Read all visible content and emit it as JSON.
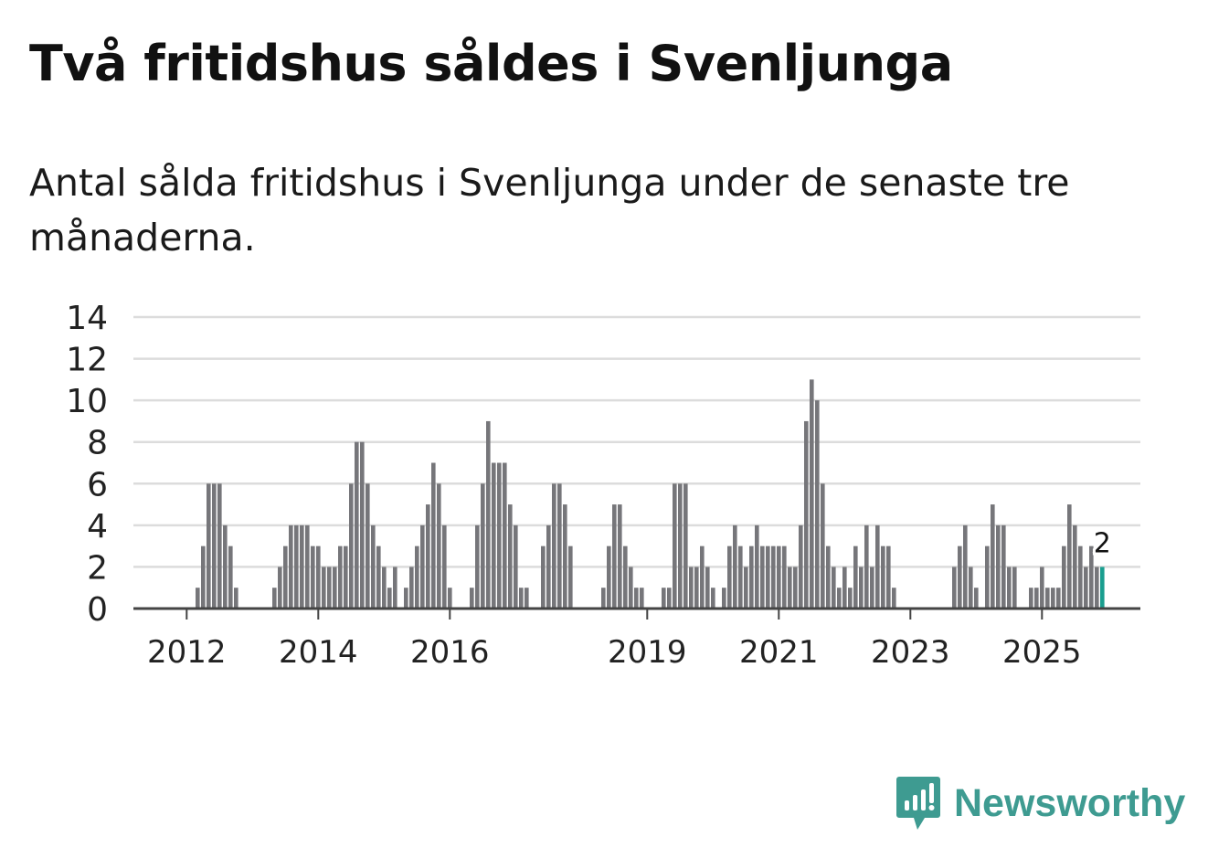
{
  "header": {
    "title": "Två fritidshus såldes i Svenljunga",
    "subtitle": "Antal sålda fritidshus i Svenljunga under de senaste tre månaderna."
  },
  "brand": {
    "name": "Newsworthy",
    "icon": "newsworthy-logo-icon",
    "color": "#3e9b91"
  },
  "colors": {
    "bar": "#76767a",
    "highlight": "#1a9e8f",
    "grid": "#dcdcdc",
    "axis": "#444444"
  },
  "chart_data": {
    "type": "bar",
    "title": "Två fritidshus såldes i Svenljunga",
    "xlabel": "",
    "ylabel": "",
    "ylim": [
      0,
      14
    ],
    "yticks": [
      0,
      2,
      4,
      6,
      8,
      10,
      12,
      14
    ],
    "grid": true,
    "xticks": [
      {
        "label": "2012",
        "index": 9
      },
      {
        "label": "2014",
        "index": 33
      },
      {
        "label": "2016",
        "index": 57
      },
      {
        "label": "2019",
        "index": 93
      },
      {
        "label": "2021",
        "index": 117
      },
      {
        "label": "2023",
        "index": 141
      },
      {
        "label": "2025",
        "index": 165
      }
    ],
    "values": [
      0,
      0,
      0,
      0,
      0,
      0,
      0,
      0,
      0,
      0,
      0,
      1,
      3,
      6,
      6,
      6,
      4,
      3,
      1,
      0,
      0,
      0,
      0,
      0,
      0,
      1,
      2,
      3,
      4,
      4,
      4,
      4,
      3,
      3,
      2,
      2,
      2,
      3,
      3,
      6,
      8,
      8,
      6,
      4,
      3,
      2,
      1,
      2,
      0,
      1,
      2,
      3,
      4,
      5,
      7,
      6,
      4,
      1,
      0,
      0,
      0,
      1,
      4,
      6,
      9,
      7,
      7,
      7,
      5,
      4,
      1,
      1,
      0,
      0,
      3,
      4,
      6,
      6,
      5,
      3,
      0,
      0,
      0,
      0,
      0,
      1,
      3,
      5,
      5,
      3,
      2,
      1,
      1,
      0,
      0,
      0,
      1,
      1,
      6,
      6,
      6,
      2,
      2,
      3,
      2,
      1,
      0,
      1,
      3,
      4,
      3,
      2,
      3,
      4,
      3,
      3,
      3,
      3,
      3,
      2,
      2,
      4,
      9,
      11,
      10,
      6,
      3,
      2,
      1,
      2,
      1,
      3,
      2,
      4,
      2,
      4,
      3,
      3,
      1,
      0,
      0,
      0,
      0,
      0,
      0,
      0,
      0,
      0,
      0,
      2,
      3,
      4,
      2,
      1,
      0,
      3,
      5,
      4,
      4,
      2,
      2,
      0,
      0,
      1,
      1,
      2,
      1,
      1,
      1,
      3,
      5,
      4,
      3,
      2,
      3,
      2,
      2
    ],
    "highlight_index": 176,
    "annotation": {
      "text": "2",
      "index": 176
    }
  }
}
